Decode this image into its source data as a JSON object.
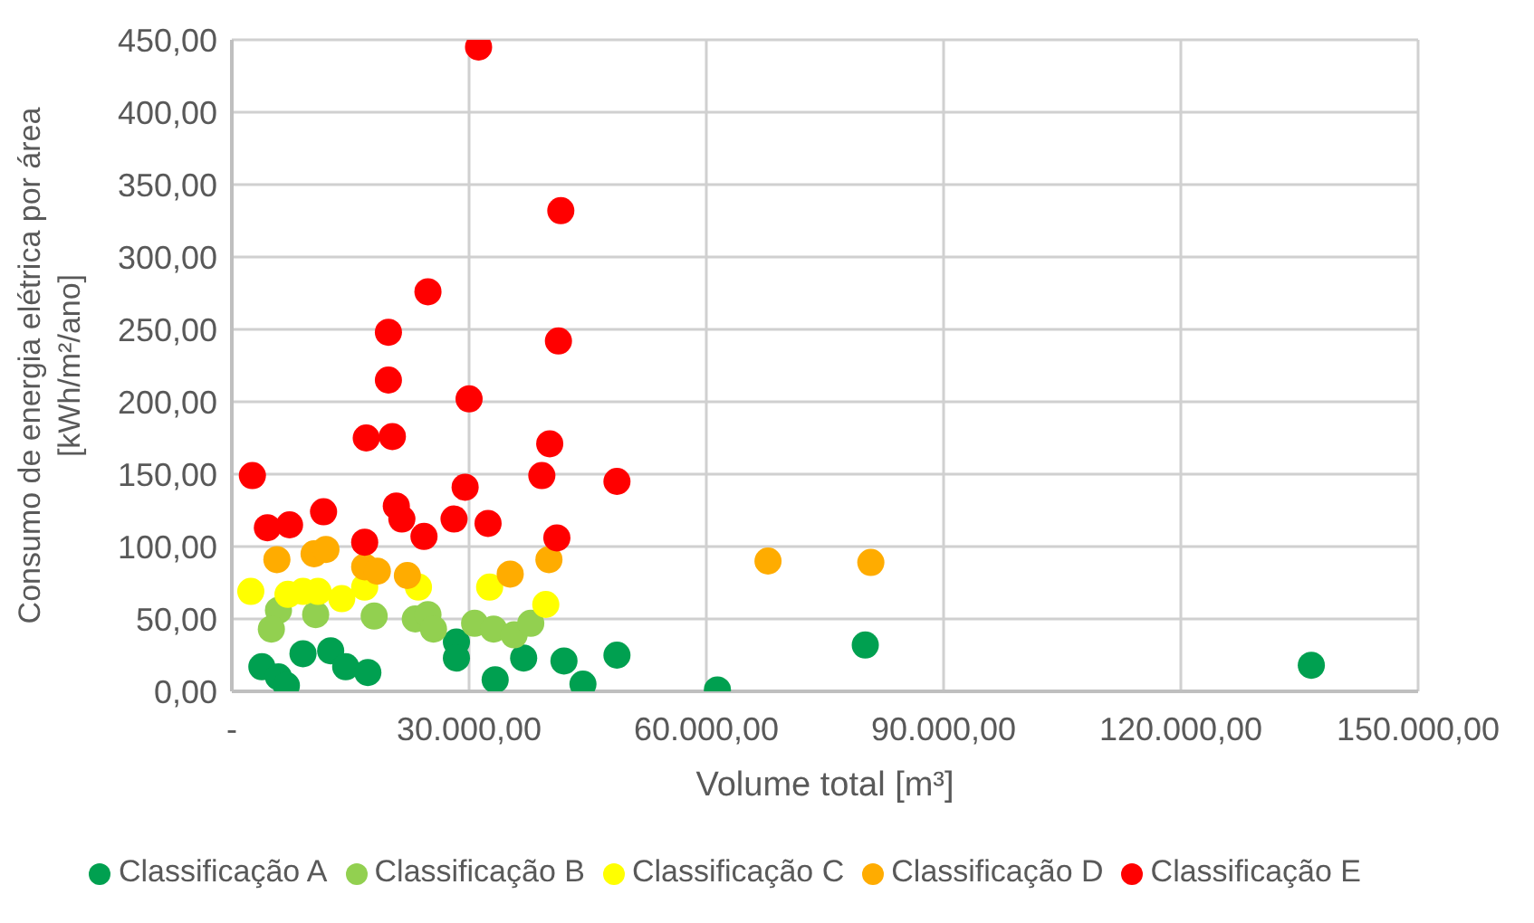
{
  "chart_data": {
    "type": "scatter",
    "xlabel": "Volume total [m³]",
    "ylabel": "Consumo de energia elétrica por área [kWh/m²/ano]",
    "xlim": [
      0,
      150000
    ],
    "ylim": [
      0,
      450
    ],
    "xticks": [
      {
        "value": 0,
        "label": "-"
      },
      {
        "value": 30000,
        "label": "30.000,00"
      },
      {
        "value": 60000,
        "label": "60.000,00"
      },
      {
        "value": 90000,
        "label": "90.000,00"
      },
      {
        "value": 120000,
        "label": "120.000,00"
      },
      {
        "value": 150000,
        "label": "150.000,00"
      }
    ],
    "yticks": [
      {
        "value": 0,
        "label": "0,00"
      },
      {
        "value": 50,
        "label": "50,00"
      },
      {
        "value": 100,
        "label": "100,00"
      },
      {
        "value": 150,
        "label": "150,00"
      },
      {
        "value": 200,
        "label": "200,00"
      },
      {
        "value": 250,
        "label": "250,00"
      },
      {
        "value": 300,
        "label": "300,00"
      },
      {
        "value": 350,
        "label": "350,00"
      },
      {
        "value": 400,
        "label": "400,00"
      },
      {
        "value": 450,
        "label": "450,00"
      }
    ],
    "grid": true,
    "legend": "bottom",
    "marker": "circle",
    "series": [
      {
        "name": "Classificação A",
        "color": "#00a050",
        "x": [
          3800,
          5900,
          6900,
          9000,
          12500,
          14400,
          17200,
          28400,
          28400,
          33300,
          36900,
          42000,
          44400,
          48700,
          61400,
          80100,
          136500
        ],
        "values": [
          17,
          10,
          4,
          26,
          28,
          17,
          13,
          34,
          23,
          8,
          23,
          21,
          5,
          25,
          1,
          32,
          18
        ]
      },
      {
        "name": "Classificação B",
        "color": "#92d050",
        "x": [
          5900,
          5000,
          10600,
          18000,
          23200,
          24800,
          25500,
          30700,
          33100,
          35700,
          37800
        ],
        "values": [
          56,
          43,
          53,
          52,
          50,
          53,
          43,
          47,
          43,
          39,
          47
        ]
      },
      {
        "name": "Classificação C",
        "color": "#ffff00",
        "x": [
          2400,
          7100,
          9000,
          10900,
          13900,
          16800,
          23600,
          32600,
          39700
        ],
        "values": [
          69,
          67,
          69,
          69,
          64,
          72,
          72,
          72,
          60
        ]
      },
      {
        "name": "Classificação D",
        "color": "#ffac00",
        "x": [
          5700,
          10400,
          11900,
          16800,
          18400,
          22200,
          35200,
          40100,
          67800,
          80800
        ],
        "values": [
          91,
          95,
          98,
          86,
          83,
          80,
          81,
          91,
          90,
          89
        ]
      },
      {
        "name": "Classificação E",
        "color": "#ff0000",
        "x": [
          31200,
          41600,
          41300,
          19800,
          19800,
          24800,
          30000,
          17000,
          20300,
          40200,
          2600,
          48700,
          39200,
          29500,
          4500,
          7300,
          11600,
          20800,
          21500,
          24300,
          28100,
          32400,
          41100,
          16800
        ],
        "values": [
          445,
          332,
          242,
          248,
          215,
          276,
          202,
          175,
          176,
          171,
          149,
          145,
          149,
          141,
          113,
          115,
          124,
          128,
          119,
          107,
          119,
          116,
          106,
          103
        ]
      }
    ]
  }
}
